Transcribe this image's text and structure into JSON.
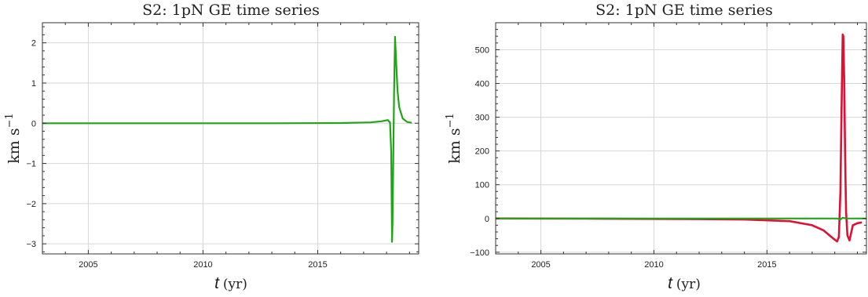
{
  "chart_data": [
    {
      "type": "line",
      "title": "S2: 1pN GE time series",
      "xlabel": "t",
      "xlabel_unit": "(yr)",
      "ylabel": "km s",
      "ylabel_exp": "−1",
      "xlim": [
        2003,
        2019.4
      ],
      "ylim": [
        -3.25,
        2.5
      ],
      "xticks": [
        2005,
        2010,
        2015
      ],
      "yticks": [
        2,
        1,
        0,
        -1,
        -2,
        -3
      ],
      "ytick_labels": [
        "2",
        "1",
        "0",
        "−1",
        "−2",
        "−3"
      ],
      "grid": true,
      "series": [
        {
          "color": "#22a31a",
          "x": [
            2003.0,
            2008.0,
            2013.0,
            2016.0,
            2017.3,
            2017.8,
            2018.05,
            2018.15,
            2018.2,
            2018.24,
            2018.26,
            2018.3,
            2018.33,
            2018.37,
            2018.42,
            2018.48,
            2018.55,
            2018.7,
            2018.9,
            2019.1
          ],
          "y": [
            0.0,
            0.0,
            0.0,
            0.005,
            0.02,
            0.05,
            0.08,
            0.02,
            -0.7,
            -2.95,
            -2.5,
            -0.5,
            0.8,
            2.15,
            1.5,
            0.8,
            0.4,
            0.12,
            0.03,
            0.01
          ]
        }
      ]
    },
    {
      "type": "line",
      "title": "S2: 1pN GE time series",
      "xlabel": "t",
      "xlabel_unit": "(yr)",
      "ylabel": "km s",
      "ylabel_exp": "−1",
      "xlim": [
        2003,
        2019.4
      ],
      "ylim": [
        -105,
        580
      ],
      "xticks": [
        2005,
        2010,
        2015
      ],
      "yticks": [
        500,
        400,
        300,
        200,
        100,
        0,
        -100
      ],
      "ytick_labels": [
        "500",
        "400",
        "300",
        "200",
        "100",
        "0",
        "−100"
      ],
      "grid": true,
      "series": [
        {
          "color": "#dd1133",
          "x": [
            2003.0,
            2007.0,
            2011.0,
            2014.0,
            2016.0,
            2017.0,
            2017.5,
            2017.8,
            2018.0,
            2018.1,
            2018.18,
            2018.25,
            2018.3,
            2018.35,
            2018.38,
            2018.42,
            2018.46,
            2018.5,
            2018.56,
            2018.65,
            2018.8,
            2019.0,
            2019.2
          ],
          "y": [
            0.0,
            -0.5,
            -1.5,
            -3.0,
            -8.0,
            -20.0,
            -35.0,
            -52.0,
            -63.0,
            -68.0,
            -55.0,
            80.0,
            320.0,
            545.0,
            540.0,
            400.0,
            180.0,
            20.0,
            -50.0,
            -65.0,
            -20.0,
            -14.0,
            -12.0
          ]
        },
        {
          "color": "#22a31a",
          "x": [
            2003.0,
            2018.1,
            2018.25,
            2018.35,
            2018.5,
            2019.4
          ],
          "y": [
            0.0,
            0.0,
            -3.0,
            2.0,
            0.2,
            0.0
          ]
        }
      ]
    }
  ]
}
